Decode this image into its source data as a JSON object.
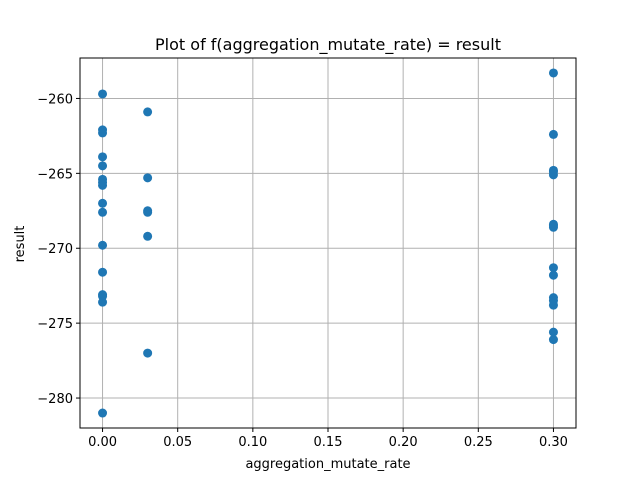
{
  "chart_data": {
    "type": "scatter",
    "title": "Plot of f(aggregation_mutate_rate) = result",
    "xlabel": "aggregation_mutate_rate",
    "ylabel": "result",
    "xlim": [
      -0.015,
      0.315
    ],
    "ylim": [
      -282.0,
      -257.3
    ],
    "xticks": [
      0.0,
      0.05,
      0.1,
      0.15,
      0.2,
      0.25,
      0.3
    ],
    "xtick_labels": [
      "0.00",
      "0.05",
      "0.10",
      "0.15",
      "0.20",
      "0.25",
      "0.30"
    ],
    "yticks": [
      -280,
      -275,
      -270,
      -265,
      -260
    ],
    "ytick_labels": [
      "−280",
      "−275",
      "−270",
      "−265",
      "−260"
    ],
    "grid": true,
    "marker_color": "#1f77b4",
    "series": [
      {
        "x": [
          0,
          0,
          0,
          0,
          0,
          0,
          0,
          0,
          0,
          0,
          0,
          0,
          0,
          0,
          0,
          0,
          0.03,
          0.03,
          0.03,
          0.03,
          0.03,
          0.03,
          0.3,
          0.3,
          0.3,
          0.3,
          0.3,
          0.3,
          0.3,
          0.3,
          0.3,
          0.3,
          0.3,
          0.3,
          0.3,
          0.3,
          0.3
        ],
        "y": [
          -259.7,
          -262.1,
          -262.3,
          -263.9,
          -264.5,
          -265.4,
          -265.8,
          -267.0,
          -267.6,
          -269.8,
          -271.6,
          -273.1,
          -273.6,
          -273.2,
          -281.0,
          -265.6,
          -260.9,
          -265.3,
          -267.6,
          -269.2,
          -277.0,
          -267.5,
          -258.3,
          -262.4,
          -264.8,
          -265.1,
          -268.4,
          -268.6,
          -271.3,
          -271.8,
          -273.3,
          -273.8,
          -275.6,
          -276.1,
          -273.5,
          -264.9,
          -268.5
        ]
      }
    ]
  }
}
